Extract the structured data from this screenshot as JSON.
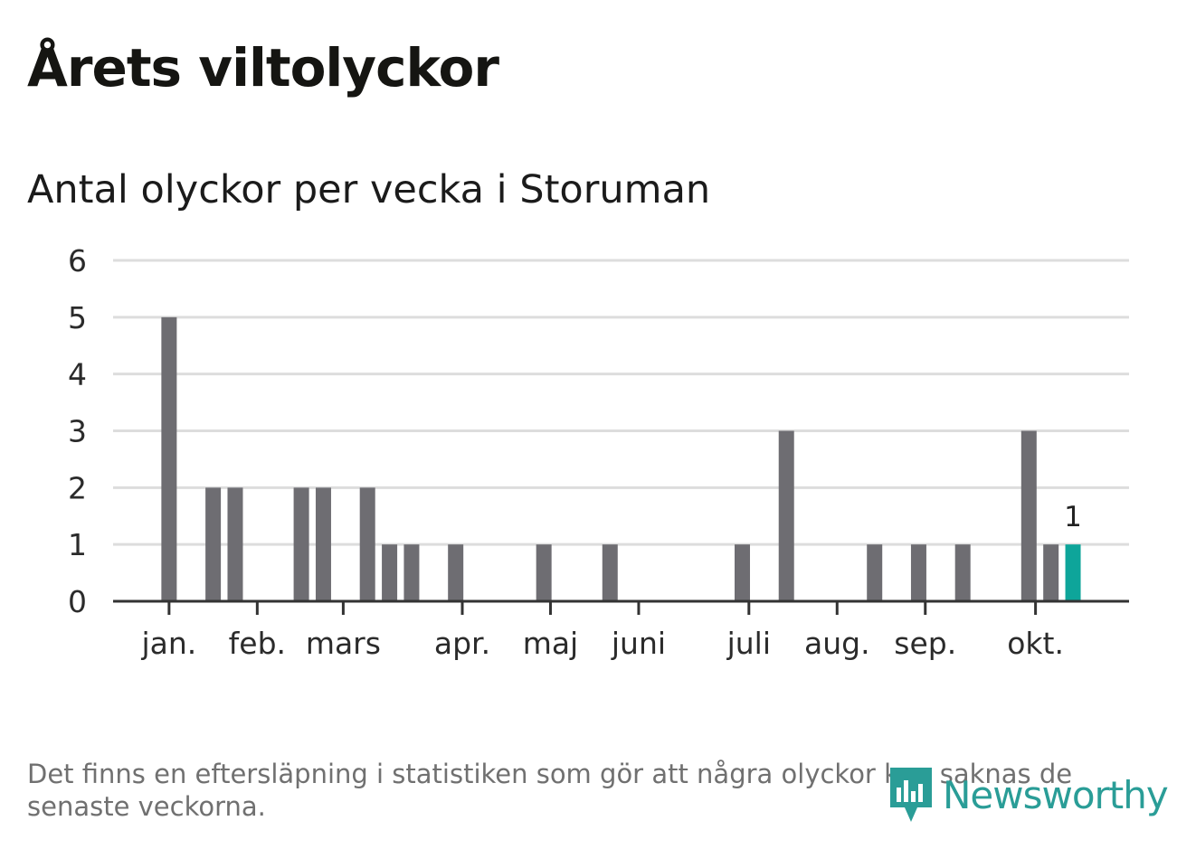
{
  "title": "Årets viltolyckor",
  "subtitle": "Antal olyckor per vecka i Storuman",
  "footnote": "Det finns en eftersläpning i statistiken som gör att några olyckor kan saknas de senaste veckorna.",
  "logo": {
    "text": "Newsworthy",
    "icon": "newsworthy-logo-icon",
    "color": "#2a9d97"
  },
  "colors": {
    "bar": "#6e6d72",
    "highlight": "#0ea59a",
    "grid": "#dddddd",
    "axis": "#333333"
  },
  "chart_data": {
    "type": "bar",
    "title": "Antal olyckor per vecka i Storuman",
    "xlabel": "",
    "ylabel": "",
    "ylim": [
      0,
      6
    ],
    "yticks": [
      0,
      1,
      2,
      3,
      4,
      5,
      6
    ],
    "grid": true,
    "x": [
      1,
      2,
      3,
      4,
      5,
      6,
      7,
      8,
      9,
      10,
      11,
      12,
      13,
      14,
      15,
      16,
      17,
      18,
      19,
      20,
      21,
      22,
      23,
      24,
      25,
      26,
      27,
      28,
      29,
      30,
      31,
      32,
      33,
      34,
      35,
      36,
      37,
      38,
      39,
      40,
      41,
      42,
      43
    ],
    "values": [
      0,
      5,
      0,
      2,
      2,
      0,
      0,
      2,
      2,
      0,
      2,
      1,
      1,
      0,
      1,
      0,
      0,
      0,
      1,
      0,
      0,
      1,
      0,
      0,
      0,
      0,
      0,
      1,
      0,
      3,
      0,
      0,
      0,
      1,
      0,
      1,
      0,
      1,
      0,
      0,
      3,
      1,
      1
    ],
    "highlight_index": 42,
    "highlight_label": "1",
    "month_ticks": [
      {
        "label": "jan.",
        "week": 2.0
      },
      {
        "label": "feb.",
        "week": 6.0
      },
      {
        "label": "mars",
        "week": 9.9
      },
      {
        "label": "apr.",
        "week": 15.3
      },
      {
        "label": "maj",
        "week": 19.3
      },
      {
        "label": "juni",
        "week": 23.3
      },
      {
        "label": "juli",
        "week": 28.3
      },
      {
        "label": "aug.",
        "week": 32.3
      },
      {
        "label": "sep.",
        "week": 36.3
      },
      {
        "label": "okt.",
        "week": 41.3
      }
    ]
  }
}
